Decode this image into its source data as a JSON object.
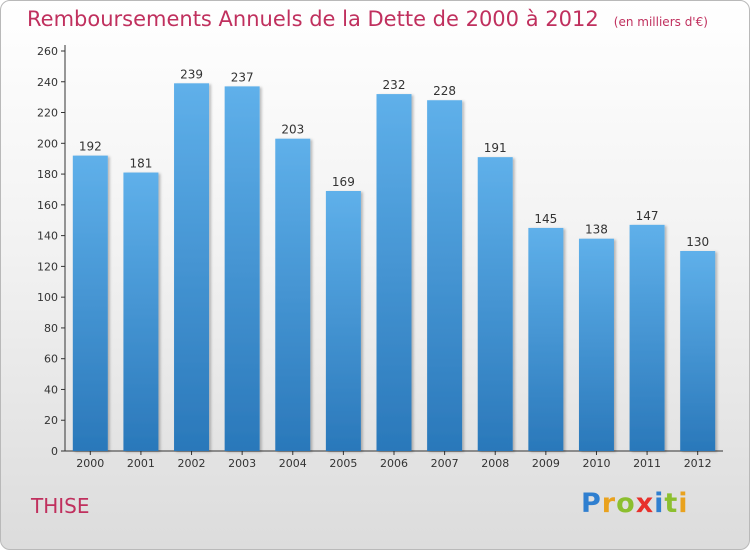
{
  "header": {
    "title": "Remboursements Annuels de la Dette de 2000 à 2012",
    "subtitle": "(en milliers d'€)"
  },
  "footer": {
    "place": "THISE",
    "brand_letters": [
      {
        "ch": "P",
        "color": "#2f7fd0"
      },
      {
        "ch": "r",
        "color": "#e9a21e"
      },
      {
        "ch": "o",
        "color": "#8cbf2f"
      },
      {
        "ch": "x",
        "color": "#e8302b"
      },
      {
        "ch": "i",
        "color": "#2f7fd0"
      },
      {
        "ch": "t",
        "color": "#8cbf2f"
      },
      {
        "ch": "i",
        "color": "#e9a21e"
      }
    ]
  },
  "chart_data": {
    "type": "bar",
    "title": "Remboursements Annuels de la Dette de 2000 à 2012",
    "subtitle": "(en milliers d'€)",
    "categories": [
      "2000",
      "2001",
      "2002",
      "2003",
      "2004",
      "2005",
      "2006",
      "2007",
      "2008",
      "2009",
      "2010",
      "2011",
      "2012"
    ],
    "values": [
      192,
      181,
      239,
      237,
      203,
      169,
      232,
      228,
      191,
      145,
      138,
      147,
      130
    ],
    "ylim": [
      0,
      260
    ],
    "yticks": [
      0,
      20,
      40,
      60,
      80,
      100,
      120,
      140,
      160,
      180,
      200,
      220,
      240,
      260
    ],
    "grid": false,
    "colors": {
      "bar_top": "#5fb0ea",
      "bar_bottom": "#2a78ba",
      "axis": "#333333"
    }
  }
}
